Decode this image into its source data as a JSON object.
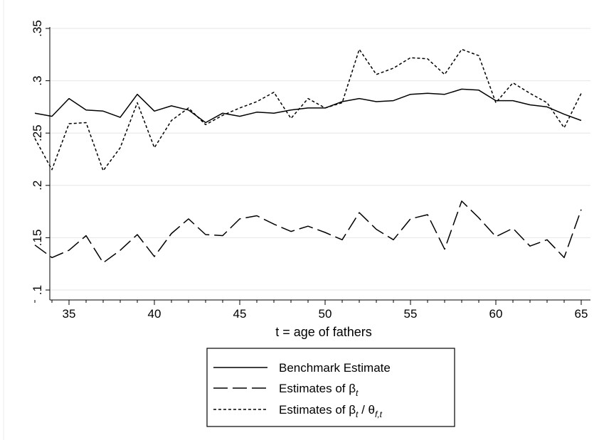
{
  "chart_data": {
    "type": "line",
    "xlabel": "t = age of fathers",
    "ylabel": "",
    "xlim": [
      33,
      65
    ],
    "ylim": [
      0.1,
      0.35
    ],
    "xticks": [
      35,
      40,
      45,
      50,
      55,
      60,
      65
    ],
    "xtick_labels": [
      "35",
      "40",
      "45",
      "50",
      "55",
      "60",
      "65"
    ],
    "yticks": [
      0.1,
      0.15,
      0.2,
      0.25,
      0.3,
      0.35
    ],
    "ytick_labels": [
      ".1",
      ".15",
      ".2",
      ".25",
      ".3",
      ".35"
    ],
    "grid": true,
    "legend_position": "bottom",
    "x": [
      33,
      34,
      35,
      36,
      37,
      38,
      39,
      40,
      41,
      42,
      43,
      44,
      45,
      46,
      47,
      48,
      49,
      50,
      51,
      52,
      53,
      54,
      55,
      56,
      57,
      58,
      59,
      60,
      61,
      62,
      63,
      64,
      65
    ],
    "series": [
      {
        "name": "Benchmark Estimate",
        "style": "solid",
        "values": [
          0.269,
          0.266,
          0.283,
          0.272,
          0.271,
          0.265,
          0.287,
          0.271,
          0.276,
          0.272,
          0.26,
          0.269,
          0.266,
          0.27,
          0.269,
          0.272,
          0.274,
          0.274,
          0.28,
          0.283,
          0.28,
          0.281,
          0.287,
          0.288,
          0.287,
          0.292,
          0.291,
          0.281,
          0.281,
          0.277,
          0.275,
          0.268,
          0.262
        ]
      },
      {
        "name": "Estimates of βt",
        "name_parts": {
          "main": "Estimates of β",
          "sub": "t"
        },
        "style": "longdash",
        "values": [
          0.143,
          0.131,
          0.138,
          0.152,
          0.126,
          0.138,
          0.153,
          0.132,
          0.154,
          0.168,
          0.153,
          0.152,
          0.168,
          0.171,
          0.163,
          0.156,
          0.161,
          0.155,
          0.148,
          0.174,
          0.158,
          0.148,
          0.168,
          0.172,
          0.139,
          0.185,
          0.169,
          0.151,
          0.159,
          0.142,
          0.148,
          0.131,
          0.177
        ]
      },
      {
        "name": "Estimates of βt / θf,t",
        "name_parts": {
          "main": "Estimates of β",
          "sub": "t",
          "mid": " / θ",
          "sub2": "f,t"
        },
        "style": "shortdash",
        "values": [
          0.245,
          0.215,
          0.259,
          0.26,
          0.214,
          0.236,
          0.279,
          0.236,
          0.262,
          0.274,
          0.258,
          0.267,
          0.274,
          0.28,
          0.289,
          0.264,
          0.283,
          0.274,
          0.279,
          0.33,
          0.306,
          0.312,
          0.322,
          0.321,
          0.306,
          0.33,
          0.324,
          0.279,
          0.298,
          0.288,
          0.279,
          0.255,
          0.288
        ]
      }
    ]
  }
}
